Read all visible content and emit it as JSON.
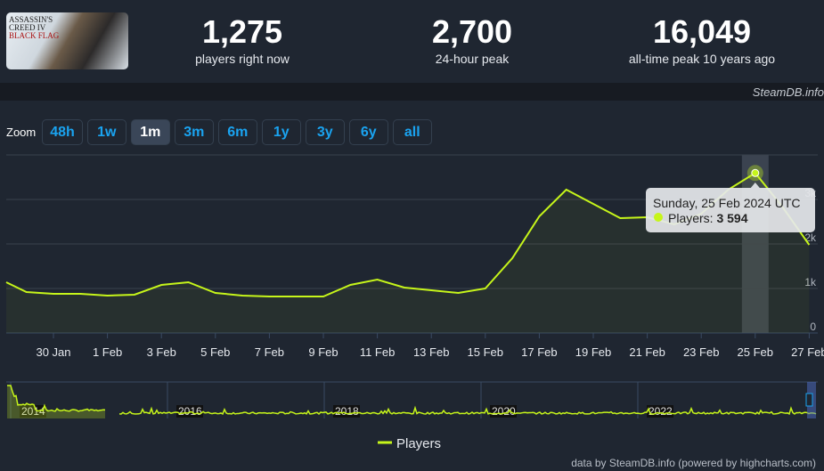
{
  "header": {
    "game_cover_text": "Assassin's Creed IV Black Flag",
    "stats": [
      {
        "value": "1,275",
        "label": "players right now"
      },
      {
        "value": "2,700",
        "label": "24-hour peak"
      },
      {
        "value": "16,049",
        "label": "all-time peak 10 years ago"
      }
    ]
  },
  "credit": "SteamDB.info",
  "zoom": {
    "label": "Zoom",
    "buttons": [
      "48h",
      "1w",
      "1m",
      "3m",
      "6m",
      "1y",
      "3y",
      "6y",
      "all"
    ],
    "active": "1m"
  },
  "tooltip": {
    "date": "Sunday, 25 Feb 2024 UTC",
    "series": "Players",
    "value": "3 594"
  },
  "footer": "data by SteamDB.info (powered by highcharts.com)",
  "colors": {
    "line": "#c6f51a",
    "background": "#1f2631",
    "accent": "#1aa3f0"
  },
  "chart_data": {
    "type": "line",
    "x": [
      "28 Jan",
      "29 Jan",
      "30 Jan",
      "31 Jan",
      "1 Feb",
      "2 Feb",
      "3 Feb",
      "4 Feb",
      "5 Feb",
      "6 Feb",
      "7 Feb",
      "8 Feb",
      "9 Feb",
      "10 Feb",
      "11 Feb",
      "12 Feb",
      "13 Feb",
      "14 Feb",
      "15 Feb",
      "16 Feb",
      "17 Feb",
      "18 Feb",
      "19 Feb",
      "20 Feb",
      "21 Feb",
      "22 Feb",
      "23 Feb",
      "24 Feb",
      "25 Feb",
      "26 Feb",
      "27 Feb"
    ],
    "series": [
      {
        "name": "Players",
        "values": [
          1140,
          920,
          880,
          880,
          840,
          860,
          1080,
          1140,
          900,
          840,
          820,
          820,
          820,
          1080,
          1200,
          1020,
          960,
          900,
          1000,
          1680,
          2620,
          3220,
          2900,
          2580,
          2600,
          2440,
          2680,
          3220,
          3594,
          2840,
          1980
        ]
      }
    ],
    "xticks": [
      "30 Jan",
      "1 Feb",
      "3 Feb",
      "5 Feb",
      "7 Feb",
      "9 Feb",
      "11 Feb",
      "13 Feb",
      "15 Feb",
      "17 Feb",
      "19 Feb",
      "21 Feb",
      "23 Feb",
      "25 Feb",
      "27 Feb"
    ],
    "yticks": [
      "0",
      "1k",
      "2k",
      "3k"
    ],
    "ylim": [
      0,
      4000
    ],
    "grid": true,
    "legend": "bottom",
    "highlighted": "25 Feb",
    "navigator": {
      "year_labels": [
        "2014",
        "2016",
        "2018",
        "2020",
        "2022"
      ]
    }
  }
}
